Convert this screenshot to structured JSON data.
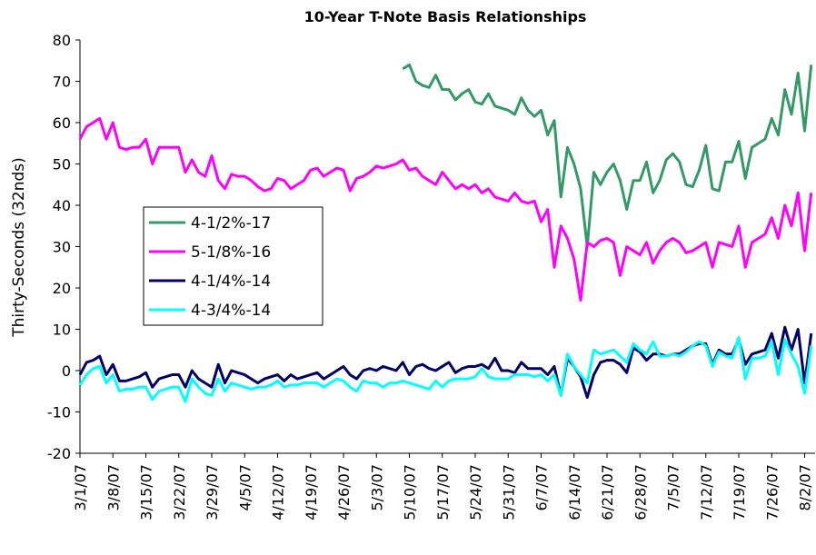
{
  "chart_data": {
    "type": "line",
    "title": "10-Year T-Note Basis Relationships",
    "y_label": "Thirty-Seconds (32nds)",
    "categories": [
      "3/1/07",
      null,
      null,
      null,
      null,
      "3/8/07",
      null,
      null,
      null,
      null,
      "3/15/07",
      null,
      null,
      null,
      null,
      "3/22/07",
      null,
      null,
      null,
      null,
      "3/29/07",
      null,
      null,
      null,
      null,
      "4/5/07",
      null,
      null,
      null,
      null,
      "4/12/07",
      null,
      null,
      null,
      null,
      "4/19/07",
      null,
      null,
      null,
      null,
      "4/26/07",
      null,
      null,
      null,
      null,
      "5/3/07",
      null,
      null,
      null,
      null,
      "5/10/07",
      null,
      null,
      null,
      null,
      "5/17/07",
      null,
      null,
      null,
      null,
      "5/24/07",
      null,
      null,
      null,
      null,
      "5/31/07",
      null,
      null,
      null,
      null,
      "6/7/07",
      null,
      null,
      null,
      null,
      "6/14/07",
      null,
      null,
      null,
      null,
      "6/21/07",
      null,
      null,
      null,
      null,
      "6/28/07",
      null,
      null,
      null,
      null,
      "7/5/07",
      null,
      null,
      null,
      null,
      "7/12/07",
      null,
      null,
      null,
      null,
      "7/19/07",
      null,
      null,
      null,
      null,
      "7/26/07",
      null,
      null,
      null,
      null,
      "8/2/07",
      null
    ],
    "series": [
      {
        "name": "4-1/2%-17",
        "color": "#339966",
        "values": [
          null,
          null,
          null,
          null,
          null,
          null,
          null,
          null,
          null,
          null,
          null,
          null,
          null,
          null,
          null,
          null,
          null,
          null,
          null,
          null,
          null,
          null,
          null,
          null,
          null,
          null,
          null,
          null,
          null,
          null,
          null,
          null,
          null,
          null,
          null,
          null,
          null,
          null,
          null,
          null,
          null,
          null,
          null,
          null,
          null,
          null,
          null,
          null,
          null,
          73,
          74,
          70,
          69,
          68.5,
          71.5,
          68,
          68,
          65.5,
          67,
          68,
          65,
          64.5,
          67,
          64,
          63.5,
          63,
          62,
          66,
          63,
          61.5,
          63,
          57,
          60.5,
          42,
          54,
          50,
          44,
          30,
          48,
          45,
          48,
          50,
          46,
          39,
          46,
          46,
          50.5,
          43,
          46,
          51,
          52.5,
          50.5,
          45,
          44.5,
          48.5,
          54.5,
          44,
          43.5,
          50.5,
          50.5,
          55.5,
          46.5,
          54,
          55,
          56,
          61,
          57,
          68,
          62,
          72,
          58,
          74
        ]
      },
      {
        "name": "5-1/8%-16",
        "color": "#ff00ff",
        "values": [
          56,
          59,
          60,
          61,
          56,
          60,
          54,
          53.5,
          54,
          54,
          56,
          50,
          54,
          54,
          54,
          54,
          48,
          51,
          48,
          47,
          52,
          46,
          44,
          47.5,
          47,
          47,
          46,
          44.5,
          43.5,
          44,
          46.5,
          46,
          44,
          45,
          46,
          48.5,
          49,
          47,
          48,
          49,
          48.5,
          43.5,
          46.5,
          47,
          48,
          49.5,
          49,
          49.5,
          50,
          51,
          48.5,
          49,
          47,
          46,
          45,
          48,
          46,
          44,
          45,
          44,
          45,
          43,
          44,
          42,
          41.5,
          41,
          43,
          41,
          40.5,
          41,
          36,
          39,
          25,
          35,
          32,
          27,
          17,
          31,
          30,
          31.5,
          32,
          31,
          23,
          30,
          29,
          28,
          31,
          26,
          29,
          31,
          32,
          31,
          28.5,
          29,
          30,
          31,
          25,
          31,
          30.5,
          30,
          35,
          25,
          31,
          32,
          33,
          37,
          32,
          40,
          35,
          43,
          29,
          43
        ]
      },
      {
        "name": "4-1/4%-14",
        "color": "#000066",
        "values": [
          -1,
          2,
          2.5,
          3.5,
          -1,
          1.5,
          -2.5,
          -2.5,
          -2,
          -1.5,
          -0.5,
          -4,
          -2,
          -1.5,
          -1,
          -1,
          -4,
          0,
          -2,
          -3,
          -4,
          1.5,
          -3,
          0,
          -0.5,
          -1,
          -2,
          -3,
          -2,
          -1.5,
          -1,
          -2.5,
          -1,
          -2,
          -1.5,
          -1,
          -0.5,
          -2,
          -1,
          0,
          1,
          -1,
          -2,
          0,
          0.5,
          0,
          1,
          0.5,
          0,
          2,
          -1,
          1,
          1.5,
          0.5,
          0,
          1,
          2,
          -0.5,
          0.5,
          1,
          1,
          1.5,
          0.5,
          3,
          0,
          0,
          -0.5,
          2,
          0.5,
          0.5,
          0.5,
          -1,
          1,
          -6,
          3,
          1,
          -1.5,
          -6.5,
          -1,
          2,
          2.5,
          2.5,
          1.5,
          -0.5,
          5.5,
          4.5,
          2.5,
          4,
          4,
          3.5,
          4,
          4,
          5,
          6,
          6.5,
          6.5,
          1.5,
          5,
          4,
          4,
          7.5,
          1.5,
          4,
          4.5,
          5,
          9,
          3,
          10.5,
          5,
          10,
          -3,
          9
        ]
      },
      {
        "name": "4-3/4%-14",
        "color": "#00ffff",
        "values": [
          -3.5,
          -1,
          0.5,
          1,
          -3,
          -1,
          -5,
          -4.5,
          -4.5,
          -4,
          -4,
          -7,
          -5,
          -4.5,
          -4,
          -4,
          -7.5,
          -2,
          -4,
          -5.5,
          -6,
          -2,
          -5,
          -3,
          -3.5,
          -4,
          -4.5,
          -4,
          -4,
          -3.5,
          -2.5,
          -4,
          -3.5,
          -3.5,
          -3,
          -3,
          -3,
          -4,
          -3,
          -2,
          -2.5,
          -4,
          -5,
          -2.5,
          -3,
          -3,
          -4,
          -3,
          -3,
          -2.5,
          -3,
          -3.5,
          -4,
          -4.5,
          -2.5,
          -4,
          -2.5,
          -2,
          -2,
          -2,
          -1.5,
          0.5,
          -1.5,
          -2,
          -2,
          -2,
          -1,
          -1,
          -1,
          -1.5,
          -1,
          -2.5,
          -1,
          -6,
          4,
          1,
          -1,
          -3,
          5,
          4,
          4.5,
          5,
          3.5,
          2,
          6.5,
          5,
          4,
          7,
          3.5,
          3.5,
          4,
          3.5,
          4.5,
          6,
          7,
          6,
          1,
          4.5,
          3.5,
          3,
          8,
          -2,
          3,
          3,
          3.5,
          7,
          -1,
          7.5,
          4,
          1,
          -5.5,
          6
        ]
      }
    ],
    "ylim": [
      -20,
      80
    ],
    "yticks": [
      -20,
      -10,
      0,
      10,
      20,
      30,
      40,
      50,
      60,
      70,
      80
    ]
  }
}
